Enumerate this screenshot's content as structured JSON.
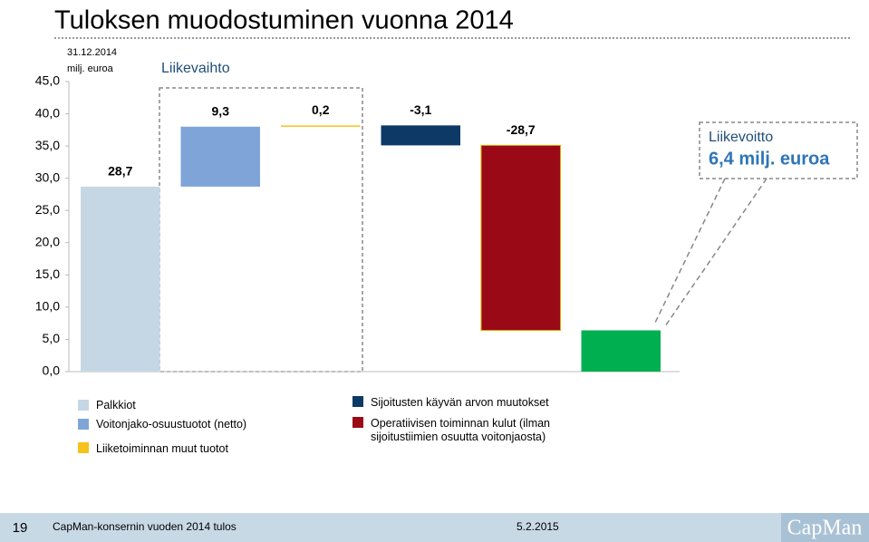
{
  "chart_data": {
    "type": "waterfall",
    "title": "Tuloksen muodostuminen vuonna 2014",
    "subtitle": "31.12.2014",
    "unit_label": "milj. euroa",
    "annotations": [
      "Liikevaihto",
      "Liikevoitto"
    ],
    "categories": [
      "Palkkiot",
      "Voitonjako-osuustuotot (netto)",
      "Liiketoiminnan muut tuotot",
      "Sijoitusten käyvän arvon muutokset",
      "Operatiivisen toiminnan kulut (ilman sijoitustiimien osuutta voitonjaosta)",
      null
    ],
    "values": [
      28.7,
      9.3,
      0.2,
      -3.1,
      -28.7,
      6.4
    ],
    "value_labels": [
      "28,7",
      "9,3",
      "0,2",
      "-3,1",
      "-28,7",
      "6,4 milj. euroa"
    ],
    "colors": [
      "#c5d7e4",
      "#7fa5d8",
      "#f6c21b",
      "#0c3966",
      "#9a0a16",
      "#00b050"
    ],
    "ylim": [
      0,
      45
    ],
    "yticks": [
      {
        "value": 0,
        "label": "0,0"
      },
      {
        "value": 5,
        "label": "5,0"
      },
      {
        "value": 10,
        "label": "10,0"
      },
      {
        "value": 15,
        "label": "15,0"
      },
      {
        "value": 20,
        "label": "20,0"
      },
      {
        "value": 25,
        "label": "25,0"
      },
      {
        "value": 30,
        "label": "30,0"
      },
      {
        "value": 35,
        "label": "35,0"
      },
      {
        "value": 40,
        "label": "40,0"
      },
      {
        "value": 45,
        "label": "45,0"
      }
    ]
  },
  "footer": {
    "page": "19",
    "text": "CapMan-konsernin vuoden 2014 tulos",
    "date": "5.2.2015",
    "logo": "CapMan"
  }
}
